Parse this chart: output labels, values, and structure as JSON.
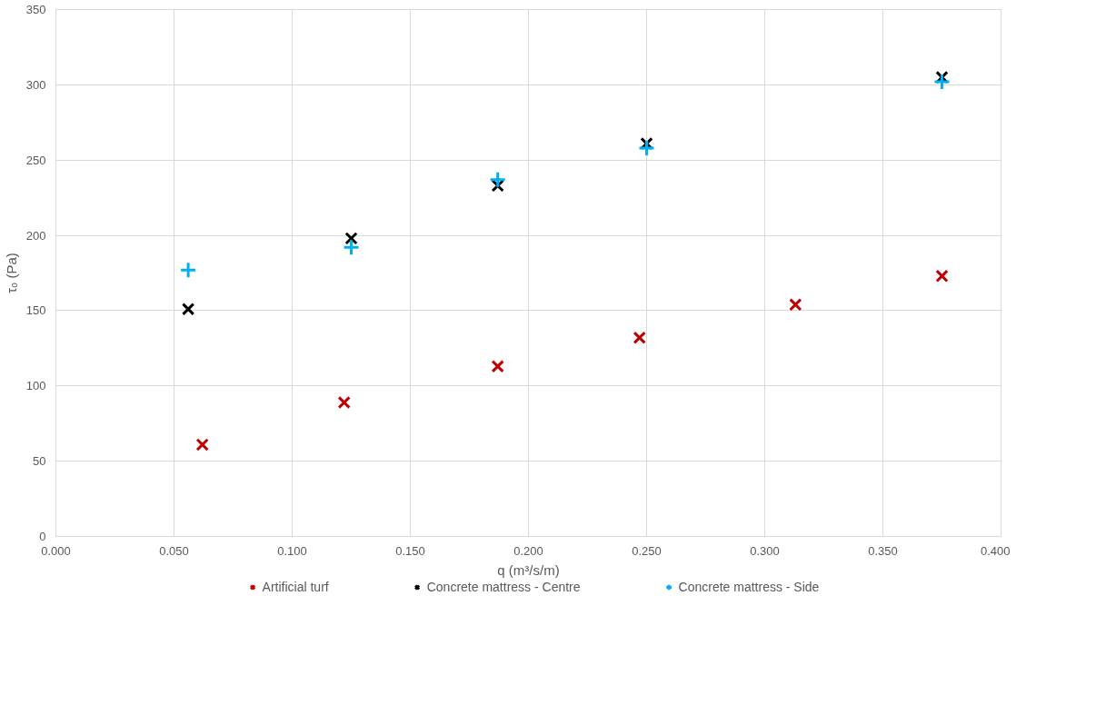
{
  "chart_data": {
    "type": "scatter",
    "xlabel": "q (m³/s/m)",
    "ylabel": "τ₀ (Pa)",
    "xlim": [
      0,
      0.4
    ],
    "xticks": [
      {
        "value": 0,
        "label": "0.000"
      },
      {
        "value": 0.05,
        "label": "0.050"
      },
      {
        "value": 0.1,
        "label": "0.100"
      },
      {
        "value": 0.15,
        "label": "0.150"
      },
      {
        "value": 0.2,
        "label": "0.200"
      },
      {
        "value": 0.25,
        "label": "0.250"
      },
      {
        "value": 0.3,
        "label": "0.300"
      },
      {
        "value": 0.35,
        "label": "0.350"
      },
      {
        "value": 0.4,
        "label": "0.400"
      }
    ],
    "ylim": [
      0,
      350
    ],
    "yticks": [
      0,
      50,
      100,
      150,
      200,
      250,
      300,
      350
    ],
    "grid": true,
    "legend": "bottom",
    "series": [
      {
        "name": "Artificial turf",
        "color": "#c00000",
        "marker": "cross",
        "x": [
          0.062,
          0.122,
          0.187,
          0.247,
          0.313,
          0.375
        ],
        "values": [
          61,
          89,
          113,
          132,
          154,
          173
        ]
      },
      {
        "name": "Concrete mattress - Centre",
        "color": "#000000",
        "marker": "cross",
        "x": [
          0.056,
          0.125,
          0.187,
          0.25,
          0.375
        ],
        "values": [
          151,
          198,
          233,
          261,
          305
        ]
      },
      {
        "name": "Concrete mattress - Side",
        "color": "#00b0f0",
        "marker": "plus",
        "x": [
          0.056,
          0.125,
          0.187,
          0.25,
          0.375
        ],
        "values": [
          177,
          192,
          237,
          258,
          302
        ]
      }
    ]
  }
}
